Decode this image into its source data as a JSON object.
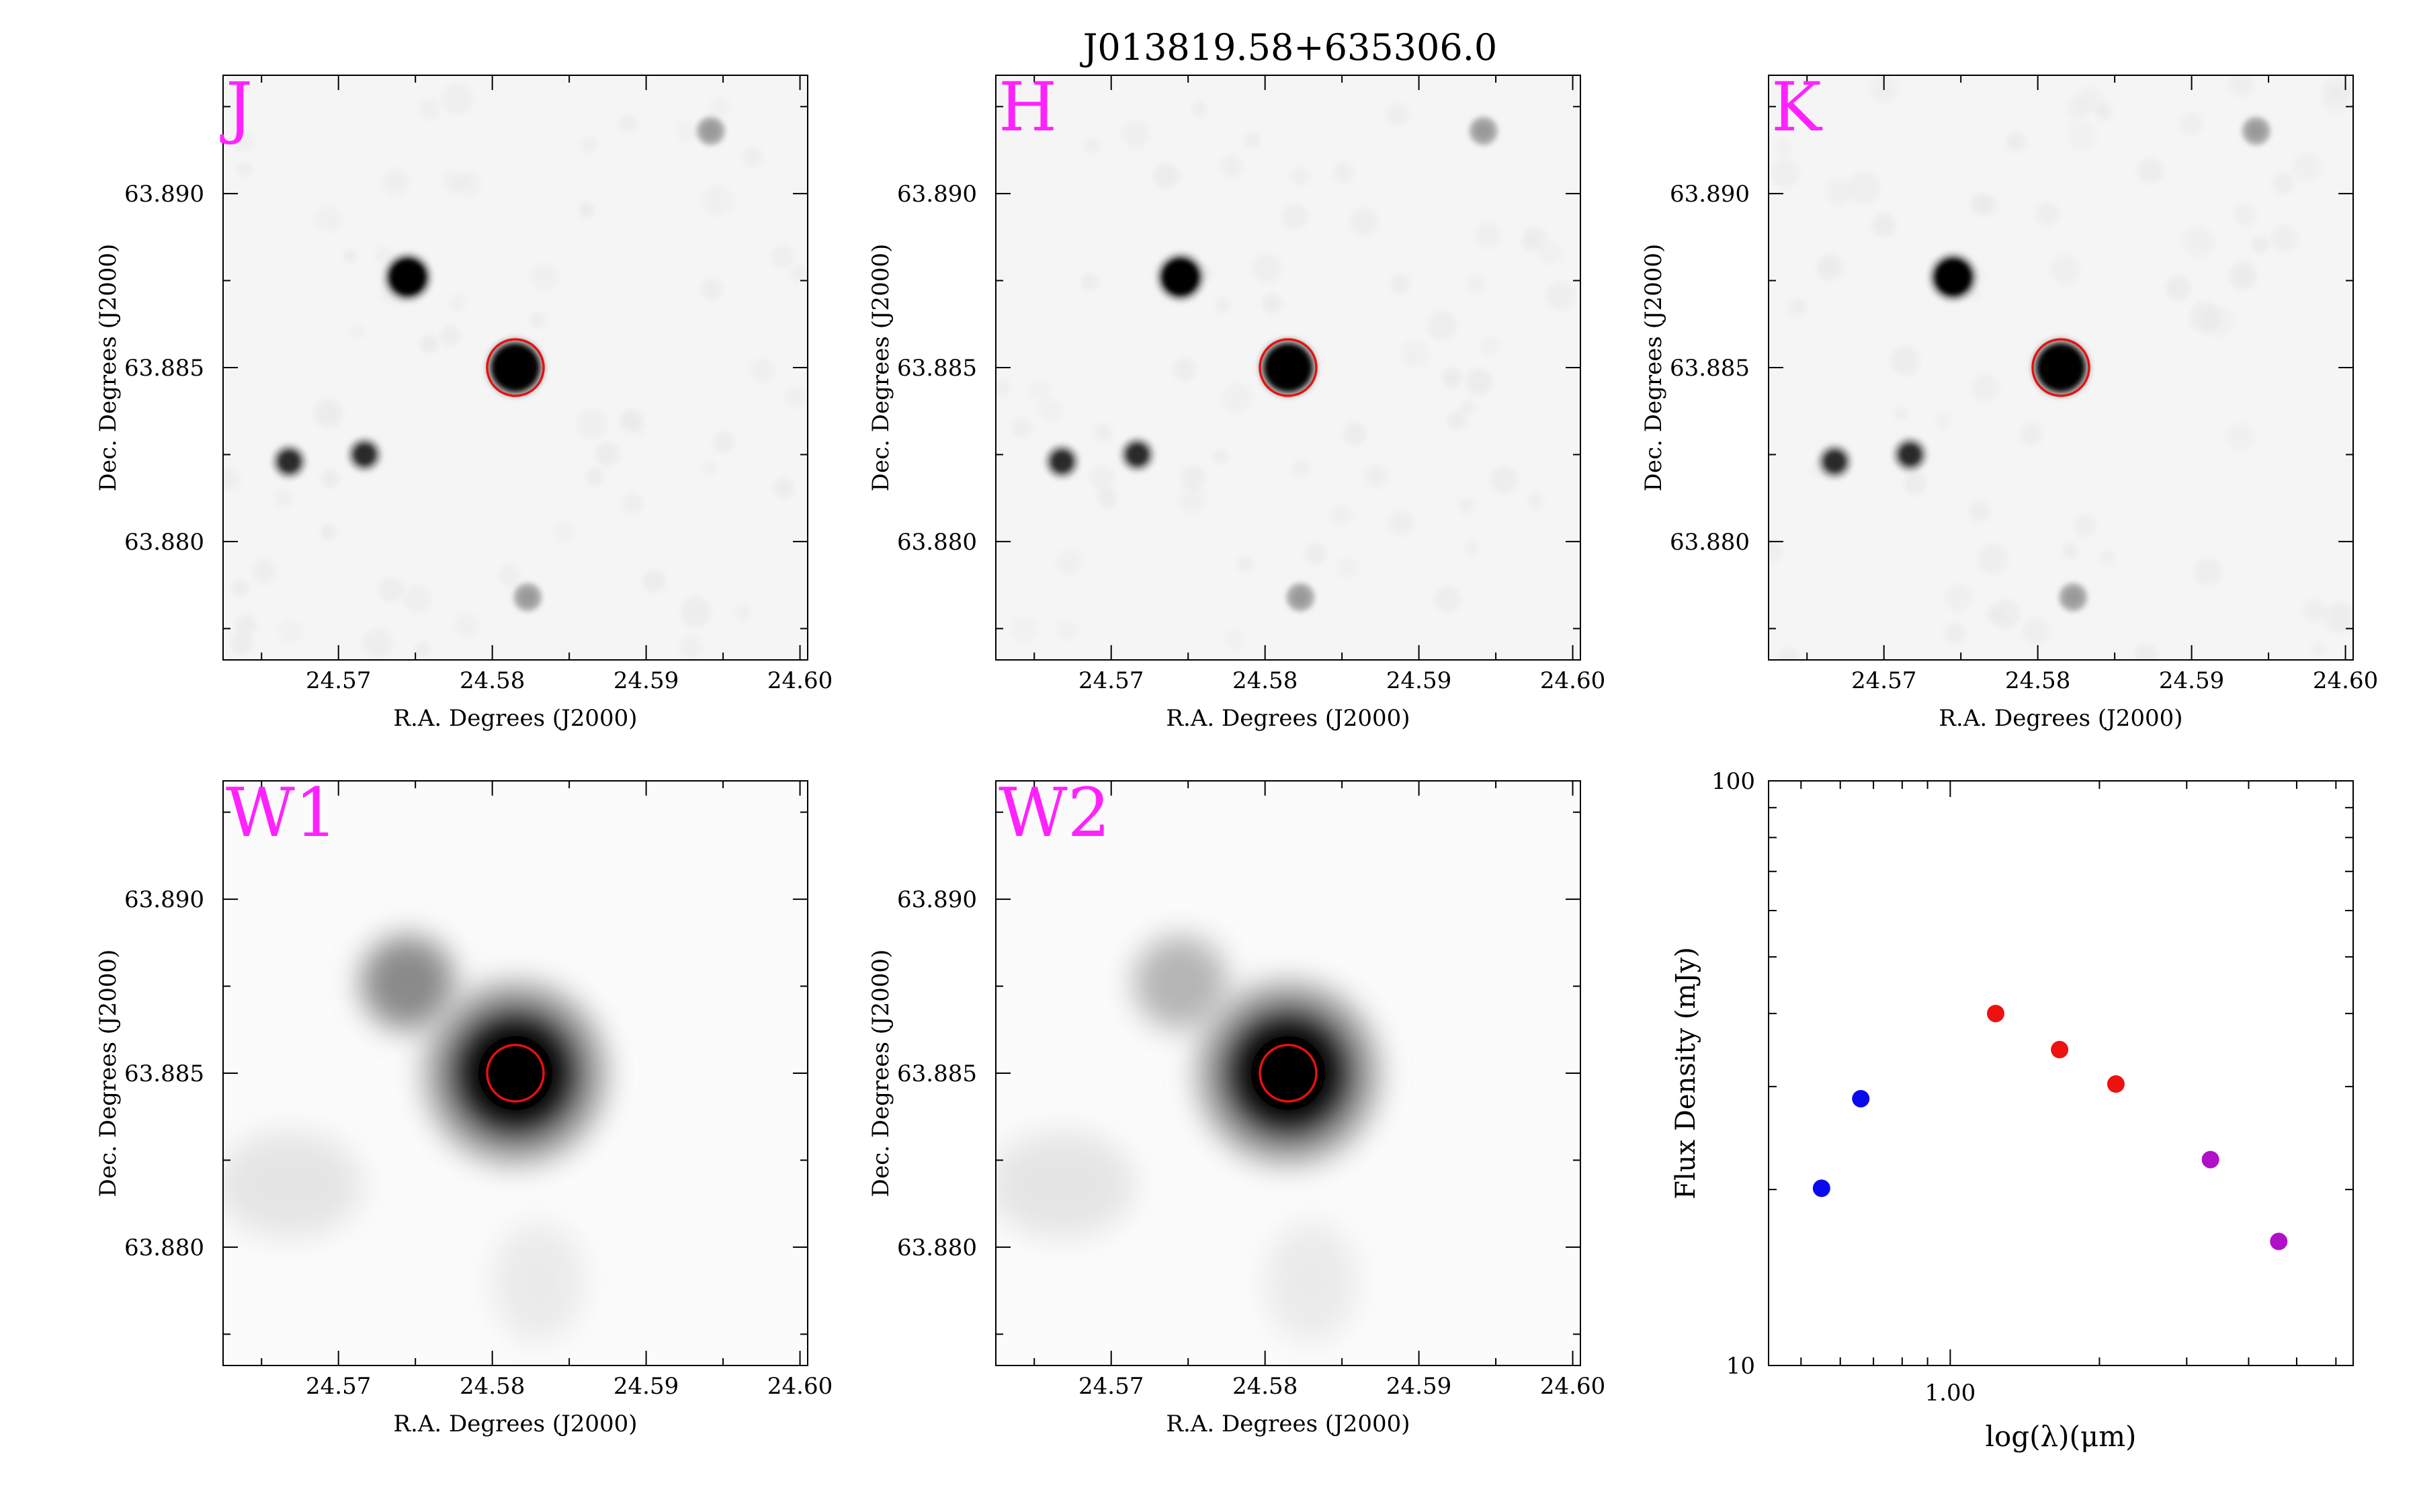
{
  "figure": {
    "title": "J013819.58+635306.0"
  },
  "panels": [
    {
      "band": "J",
      "xlabel": "R.A. Degrees (J2000)",
      "ylabel": "Dec. Degrees (J2000)",
      "xticks": [
        "24.57",
        "24.58",
        "24.59",
        "24.60"
      ],
      "yticks": [
        "63.890",
        "63.885",
        "63.880"
      ],
      "style": "sharp"
    },
    {
      "band": "H",
      "xlabel": "R.A. Degrees (J2000)",
      "ylabel": "Dec. Degrees (J2000)",
      "xticks": [
        "24.57",
        "24.58",
        "24.59",
        "24.60"
      ],
      "yticks": [
        "63.890",
        "63.885",
        "63.880"
      ],
      "style": "sharp"
    },
    {
      "band": "K",
      "xlabel": "R.A. Degrees (J2000)",
      "ylabel": "Dec. Degrees (J2000)",
      "xticks": [
        "24.57",
        "24.58",
        "24.59",
        "24.60"
      ],
      "yticks": [
        "63.890",
        "63.885",
        "63.880"
      ],
      "style": "sharp"
    },
    {
      "band": "W1",
      "xlabel": "R.A. Degrees (J2000)",
      "ylabel": "Dec. Degrees (J2000)",
      "xticks": [
        "24.57",
        "24.58",
        "24.59",
        "24.60"
      ],
      "yticks": [
        "63.890",
        "63.885",
        "63.880"
      ],
      "style": "blurred"
    },
    {
      "band": "W2",
      "xlabel": "R.A. Degrees (J2000)",
      "ylabel": "Dec. Degrees (J2000)",
      "xticks": [
        "24.57",
        "24.58",
        "24.59",
        "24.60"
      ],
      "yticks": [
        "63.890",
        "63.885",
        "63.880"
      ],
      "style": "blurred"
    }
  ],
  "image_axes": {
    "ra_range": [
      24.5625,
      24.6005
    ],
    "dec_range": [
      63.8766,
      63.8934
    ]
  },
  "sources": [
    {
      "ra": 24.5745,
      "dec": 63.8876,
      "strength": "bright"
    },
    {
      "ra": 24.5815,
      "dec": 63.885,
      "strength": "target"
    },
    {
      "ra": 24.5668,
      "dec": 63.8823,
      "strength": "medium"
    },
    {
      "ra": 24.5717,
      "dec": 63.8825,
      "strength": "medium"
    },
    {
      "ra": 24.5823,
      "dec": 63.8784,
      "strength": "faint"
    },
    {
      "ra": 24.5942,
      "dec": 63.8918,
      "strength": "faint"
    }
  ],
  "target": {
    "ra": 24.5815,
    "dec": 63.885
  },
  "colors": {
    "band_label": "#ff22ff",
    "target_circle": "#e81010",
    "optical_points": "#0a0af0",
    "nir_points": "#ee1111",
    "mir_points": "#b010c8"
  },
  "chart_data": {
    "type": "scatter",
    "title": "",
    "xlabel": "log(λ)(μm)",
    "ylabel": "Flux Density (mJy)",
    "x_scale": "log",
    "y_scale": "log",
    "xlim": [
      0.43,
      6.5
    ],
    "ylim": [
      10,
      100
    ],
    "xtick_labels": [
      "1.00"
    ],
    "ytick_labels": [
      "10",
      "100"
    ],
    "grid": false,
    "series": [
      {
        "color": "#0a0af0",
        "x": [
          0.55,
          0.66
        ],
        "y": [
          20.1,
          28.6
        ]
      },
      {
        "color": "#ee1111",
        "x": [
          1.235,
          1.662,
          2.159
        ],
        "y": [
          40.0,
          34.7,
          30.3
        ]
      },
      {
        "color": "#b010c8",
        "x": [
          3.35,
          4.6
        ],
        "y": [
          22.5,
          16.3
        ]
      }
    ]
  }
}
